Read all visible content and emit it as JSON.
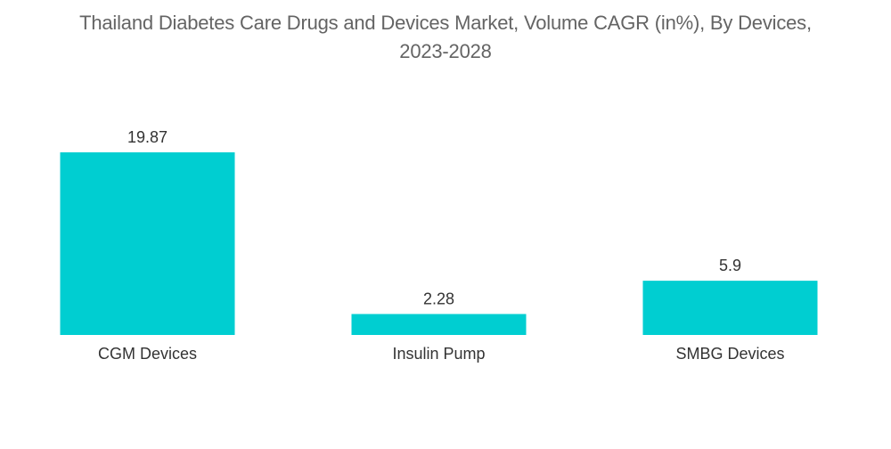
{
  "chart_data": {
    "type": "bar",
    "title_line1": "Thailand Diabetes Care Drugs and Devices Market, Volume CAGR (in%), By Devices,",
    "title_line2": "2023-2028",
    "categories": [
      "CGM Devices",
      "Insulin Pump",
      "SMBG Devices"
    ],
    "values": [
      19.87,
      2.28,
      5.9
    ],
    "value_labels": [
      "19.87",
      "2.28",
      "5.9"
    ],
    "bar_color": "#00CED1",
    "xlabel": "",
    "ylabel": "",
    "grid": false,
    "legend": "none",
    "ylim": [
      0,
      19.87
    ]
  }
}
